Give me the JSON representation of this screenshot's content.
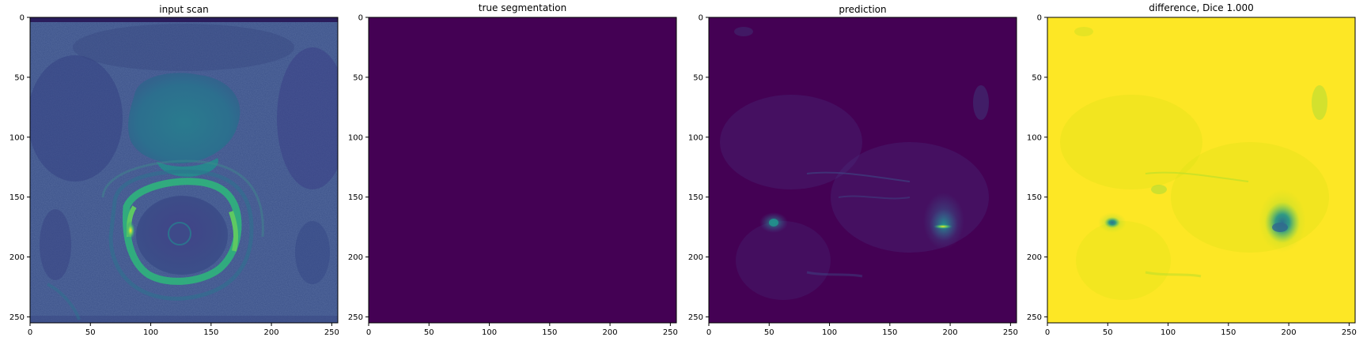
{
  "figure": {
    "background": "#ffffff",
    "colormap": {
      "name": "viridis",
      "stops": [
        "#440154",
        "#3b528b",
        "#21918c",
        "#5ec962",
        "#fde725"
      ]
    }
  },
  "panels": [
    {
      "title": "input scan",
      "xticks": [
        0,
        50,
        100,
        150,
        200,
        250
      ],
      "yticks": [
        0,
        50,
        100,
        150,
        200,
        250
      ],
      "xlim": [
        0,
        255
      ],
      "ylim": [
        255,
        0
      ],
      "content": "mri-scan"
    },
    {
      "title": "true segmentation",
      "xticks": [
        0,
        50,
        100,
        150,
        200,
        250
      ],
      "yticks": [
        0,
        50,
        100,
        150,
        200,
        250
      ],
      "xlim": [
        0,
        255
      ],
      "ylim": [
        255,
        0
      ],
      "content": "uniform-low"
    },
    {
      "title": "prediction",
      "xticks": [
        0,
        50,
        100,
        150,
        200,
        250
      ],
      "yticks": [
        0,
        50,
        100,
        150,
        200,
        250
      ],
      "xlim": [
        0,
        255
      ],
      "ylim": [
        255,
        0
      ],
      "content": "sparse-blobs"
    },
    {
      "title": "difference, Dice 1.000",
      "xticks": [
        0,
        50,
        100,
        150,
        200,
        250
      ],
      "yticks": [
        0,
        50,
        100,
        150,
        200,
        250
      ],
      "xlim": [
        0,
        255
      ],
      "ylim": [
        255,
        0
      ],
      "content": "inverted-blobs"
    }
  ]
}
